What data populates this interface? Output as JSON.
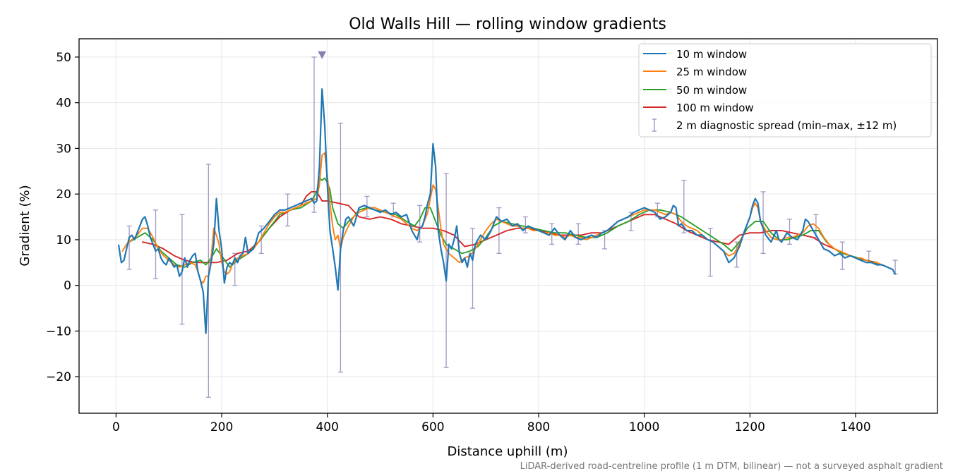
{
  "chart_data": {
    "type": "line",
    "title": "Old Walls Hill — rolling window gradients",
    "xlabel": "Distance uphill (m)",
    "ylabel": "Gradient (%)",
    "xlim": [
      -70,
      1555
    ],
    "ylim": [
      -28,
      54
    ],
    "xticks": [
      0,
      200,
      400,
      600,
      800,
      1000,
      1200,
      1400
    ],
    "xtick_labels": [
      "0",
      "200",
      "400",
      "600",
      "800",
      "1000",
      "1200",
      "1400"
    ],
    "yticks": [
      -20,
      -10,
      0,
      10,
      20,
      30,
      40,
      50
    ],
    "ytick_labels": [
      "−20",
      "−10",
      "0",
      "10",
      "20",
      "30",
      "40",
      "50"
    ],
    "grid": true,
    "legend_position": "top-right",
    "footnote": "LiDAR-derived road-centreline profile (1 m DTM, bilinear) — not a surveyed asphalt gradient",
    "series": [
      {
        "name": "10 m window",
        "color": "#1f77b4",
        "x": [
          5,
          10,
          15,
          20,
          25,
          30,
          35,
          40,
          45,
          50,
          55,
          60,
          65,
          70,
          75,
          80,
          85,
          90,
          95,
          100,
          105,
          110,
          115,
          120,
          125,
          130,
          135,
          140,
          145,
          150,
          155,
          160,
          165,
          170,
          175,
          180,
          185,
          190,
          195,
          200,
          205,
          210,
          215,
          220,
          225,
          230,
          235,
          240,
          245,
          250,
          255,
          260,
          265,
          270,
          275,
          280,
          290,
          300,
          310,
          320,
          330,
          340,
          350,
          360,
          370,
          375,
          380,
          385,
          390,
          395,
          400,
          405,
          410,
          415,
          420,
          425,
          430,
          435,
          440,
          445,
          450,
          455,
          460,
          470,
          480,
          490,
          500,
          510,
          520,
          530,
          540,
          550,
          560,
          570,
          575,
          580,
          585,
          590,
          595,
          600,
          605,
          610,
          615,
          620,
          625,
          630,
          635,
          640,
          645,
          650,
          655,
          660,
          665,
          670,
          675,
          680,
          690,
          700,
          710,
          720,
          730,
          740,
          750,
          760,
          770,
          780,
          790,
          800,
          810,
          820,
          830,
          840,
          850,
          860,
          870,
          880,
          890,
          900,
          910,
          920,
          930,
          940,
          950,
          960,
          970,
          980,
          990,
          1000,
          1010,
          1020,
          1030,
          1040,
          1050,
          1055,
          1060,
          1065,
          1070,
          1080,
          1090,
          1100,
          1110,
          1120,
          1130,
          1140,
          1150,
          1160,
          1170,
          1180,
          1190,
          1200,
          1205,
          1210,
          1215,
          1220,
          1230,
          1240,
          1250,
          1255,
          1260,
          1270,
          1280,
          1290,
          1300,
          1305,
          1310,
          1320,
          1330,
          1340,
          1350,
          1360,
          1370,
          1380,
          1390,
          1400,
          1410,
          1420,
          1430,
          1440,
          1450,
          1460,
          1470,
          1475
        ],
        "y": [
          8.8,
          5.0,
          5.5,
          8.0,
          10.5,
          11.0,
          10.0,
          11.5,
          13.0,
          14.5,
          15.0,
          13.0,
          10.5,
          9.0,
          7.5,
          8.0,
          6.0,
          5.0,
          4.5,
          6.0,
          5.0,
          4.0,
          4.5,
          2.0,
          3.0,
          6.0,
          4.0,
          5.5,
          6.5,
          7.0,
          3.0,
          1.0,
          -1.5,
          -10.5,
          2.0,
          5.0,
          9.0,
          19.0,
          12.0,
          8.0,
          0.5,
          4.0,
          5.0,
          4.5,
          6.0,
          5.0,
          6.5,
          7.0,
          10.5,
          7.0,
          7.5,
          8.0,
          9.5,
          11.5,
          12.0,
          12.5,
          14.0,
          15.5,
          16.5,
          16.5,
          17.0,
          17.5,
          18.0,
          18.5,
          19.0,
          18.0,
          18.5,
          26.0,
          43.0,
          35.0,
          22.0,
          12.0,
          8.0,
          4.0,
          -1.0,
          8.0,
          12.0,
          14.5,
          15.0,
          14.0,
          13.0,
          15.0,
          17.0,
          17.5,
          17.0,
          16.5,
          16.0,
          16.5,
          15.5,
          16.0,
          15.0,
          15.5,
          12.0,
          10.0,
          12.5,
          13.0,
          15.0,
          18.0,
          20.0,
          31.0,
          26.0,
          12.0,
          8.0,
          5.0,
          1.0,
          9.0,
          8.0,
          10.0,
          13.0,
          7.0,
          5.0,
          6.0,
          4.0,
          7.0,
          5.5,
          9.0,
          11.0,
          10.0,
          12.0,
          15.0,
          14.0,
          14.5,
          13.0,
          13.5,
          12.0,
          13.0,
          12.5,
          12.0,
          11.5,
          11.0,
          12.5,
          11.0,
          10.0,
          12.0,
          10.5,
          10.0,
          10.5,
          11.0,
          10.5,
          11.5,
          12.0,
          13.0,
          14.0,
          14.5,
          15.0,
          16.0,
          16.5,
          17.0,
          16.5,
          16.0,
          14.5,
          15.0,
          16.0,
          17.5,
          17.0,
          13.0,
          13.5,
          12.0,
          12.0,
          11.0,
          11.0,
          10.0,
          9.5,
          8.5,
          7.5,
          5.0,
          6.0,
          8.5,
          12.0,
          15.0,
          17.5,
          19.0,
          18.0,
          14.0,
          11.0,
          9.5,
          12.0,
          10.0,
          9.5,
          11.5,
          10.5,
          10.0,
          12.0,
          14.5,
          14.0,
          12.0,
          10.0,
          8.0,
          7.5,
          6.5,
          7.0,
          6.0,
          6.5,
          6.0,
          5.5,
          5.0,
          5.0,
          4.5,
          4.5,
          4.0,
          3.5,
          2.5
        ]
      },
      {
        "name": "25 m window",
        "color": "#ff7f0e",
        "x": [
          12,
          20,
          30,
          40,
          50,
          60,
          70,
          80,
          90,
          100,
          110,
          120,
          130,
          140,
          150,
          155,
          160,
          165,
          170,
          175,
          180,
          185,
          190,
          195,
          200,
          205,
          210,
          215,
          220,
          230,
          240,
          250,
          260,
          270,
          280,
          290,
          300,
          310,
          320,
          330,
          340,
          350,
          360,
          370,
          380,
          385,
          390,
          395,
          400,
          405,
          410,
          415,
          420,
          425,
          430,
          440,
          450,
          460,
          470,
          480,
          490,
          500,
          510,
          520,
          530,
          540,
          550,
          560,
          570,
          580,
          590,
          595,
          600,
          605,
          610,
          615,
          620,
          630,
          640,
          650,
          660,
          670,
          680,
          690,
          700,
          710,
          720,
          730,
          740,
          750,
          760,
          770,
          780,
          790,
          800,
          810,
          820,
          830,
          840,
          850,
          860,
          870,
          880,
          890,
          900,
          910,
          920,
          930,
          940,
          950,
          960,
          970,
          980,
          990,
          1000,
          1010,
          1020,
          1030,
          1040,
          1050,
          1060,
          1070,
          1080,
          1090,
          1100,
          1110,
          1120,
          1130,
          1140,
          1150,
          1160,
          1170,
          1180,
          1190,
          1200,
          1205,
          1210,
          1215,
          1220,
          1230,
          1240,
          1250,
          1260,
          1270,
          1280,
          1290,
          1300,
          1310,
          1320,
          1330,
          1340,
          1350,
          1360,
          1370,
          1380,
          1390,
          1400,
          1410,
          1420,
          1430,
          1440,
          1450,
          1460,
          1470
        ],
        "y": [
          7.5,
          9.0,
          10.0,
          11.0,
          12.5,
          12.5,
          10.5,
          8.0,
          6.5,
          5.5,
          4.5,
          4.0,
          4.5,
          5.0,
          4.5,
          3.0,
          1.0,
          0.5,
          2.0,
          2.0,
          6.0,
          12.5,
          11.0,
          9.0,
          5.0,
          3.0,
          2.5,
          3.0,
          4.5,
          6.0,
          6.5,
          7.0,
          8.0,
          9.5,
          11.5,
          13.5,
          15.0,
          16.0,
          16.0,
          16.5,
          17.0,
          17.5,
          18.0,
          18.5,
          19.0,
          22.0,
          28.5,
          29.0,
          24.0,
          18.0,
          13.0,
          10.0,
          11.0,
          8.0,
          10.5,
          13.0,
          15.0,
          16.0,
          16.5,
          17.0,
          17.0,
          16.5,
          16.0,
          15.5,
          15.0,
          14.5,
          13.5,
          12.5,
          12.0,
          13.0,
          16.0,
          19.0,
          22.0,
          21.0,
          17.0,
          12.5,
          9.0,
          7.0,
          6.0,
          5.0,
          6.0,
          6.5,
          8.0,
          10.0,
          12.0,
          13.5,
          14.5,
          14.0,
          13.5,
          13.0,
          13.0,
          12.5,
          12.5,
          12.0,
          12.0,
          11.5,
          11.5,
          11.0,
          11.0,
          10.5,
          11.0,
          10.5,
          10.5,
          10.0,
          10.5,
          11.0,
          11.5,
          12.0,
          13.0,
          14.0,
          14.5,
          15.0,
          15.5,
          16.0,
          16.5,
          16.5,
          16.5,
          16.0,
          15.5,
          16.0,
          15.5,
          14.0,
          13.0,
          12.5,
          12.0,
          11.0,
          10.0,
          9.5,
          8.5,
          7.5,
          6.5,
          7.0,
          9.0,
          12.0,
          15.0,
          17.0,
          18.0,
          17.0,
          14.0,
          12.0,
          10.5,
          10.0,
          10.0,
          10.5,
          10.5,
          11.0,
          11.5,
          13.0,
          13.5,
          12.5,
          10.5,
          9.0,
          8.0,
          7.5,
          7.0,
          6.5,
          6.0,
          6.0,
          5.5,
          5.0,
          5.0,
          4.5,
          4.0,
          3.5
        ]
      },
      {
        "name": "50 m window",
        "color": "#2ca02c",
        "x": [
          25,
          40,
          55,
          70,
          85,
          100,
          115,
          130,
          145,
          160,
          170,
          180,
          190,
          200,
          215,
          230,
          250,
          270,
          290,
          310,
          330,
          350,
          370,
          380,
          385,
          390,
          395,
          400,
          405,
          410,
          420,
          430,
          440,
          450,
          460,
          475,
          490,
          510,
          530,
          550,
          565,
          575,
          585,
          595,
          605,
          615,
          625,
          640,
          655,
          670,
          685,
          700,
          715,
          730,
          750,
          770,
          790,
          810,
          830,
          850,
          870,
          890,
          910,
          930,
          950,
          970,
          990,
          1010,
          1030,
          1050,
          1070,
          1090,
          1110,
          1130,
          1150,
          1165,
          1180,
          1195,
          1210,
          1225,
          1240,
          1255,
          1270,
          1285,
          1300,
          1315,
          1330,
          1345,
          1360,
          1375,
          1390,
          1405,
          1420,
          1435,
          1450,
          1460
        ],
        "y": [
          9.5,
          10.5,
          11.5,
          10.0,
          7.5,
          6.0,
          4.5,
          4.0,
          5.0,
          5.5,
          4.5,
          6.0,
          8.0,
          6.5,
          4.0,
          5.5,
          7.0,
          9.5,
          12.5,
          15.5,
          16.5,
          17.0,
          18.5,
          20.5,
          23.5,
          23.0,
          23.5,
          22.5,
          21.0,
          17.0,
          13.5,
          12.5,
          14.0,
          15.0,
          16.5,
          17.0,
          16.5,
          16.0,
          15.5,
          14.0,
          13.0,
          14.5,
          17.0,
          17.0,
          14.0,
          11.0,
          9.0,
          8.0,
          7.0,
          7.5,
          8.5,
          10.5,
          13.0,
          14.0,
          13.5,
          13.0,
          12.5,
          12.0,
          11.5,
          11.5,
          11.0,
          10.5,
          10.5,
          11.5,
          13.0,
          14.0,
          15.5,
          16.5,
          16.5,
          16.0,
          15.0,
          13.5,
          12.0,
          10.5,
          9.0,
          7.5,
          9.5,
          12.5,
          14.0,
          14.0,
          11.5,
          10.0,
          10.0,
          10.5,
          11.0,
          12.0,
          12.0,
          9.5,
          8.0,
          7.0,
          6.5,
          6.0,
          5.5,
          5.0,
          4.5,
          4.0
        ]
      },
      {
        "name": "100 m window",
        "color": "#d62728",
        "x": [
          50,
          70,
          90,
          110,
          130,
          150,
          170,
          190,
          210,
          230,
          250,
          270,
          290,
          310,
          330,
          350,
          360,
          370,
          380,
          390,
          400,
          420,
          440,
          460,
          480,
          500,
          520,
          540,
          560,
          580,
          600,
          620,
          640,
          660,
          680,
          700,
          720,
          740,
          760,
          780,
          800,
          820,
          840,
          860,
          880,
          900,
          920,
          940,
          960,
          980,
          1000,
          1020,
          1040,
          1060,
          1080,
          1100,
          1120,
          1140,
          1160,
          1180,
          1200,
          1220,
          1240,
          1260,
          1280,
          1300,
          1320,
          1340,
          1360,
          1380,
          1400,
          1420,
          1440
        ],
        "y": [
          9.5,
          9.0,
          8.0,
          6.5,
          5.5,
          5.0,
          5.0,
          5.0,
          5.5,
          7.0,
          7.5,
          9.5,
          12.5,
          15.0,
          16.5,
          17.5,
          19.5,
          20.5,
          20.5,
          18.5,
          18.5,
          18.0,
          17.5,
          15.0,
          14.5,
          15.0,
          14.5,
          13.5,
          13.0,
          12.5,
          12.5,
          12.0,
          11.0,
          8.5,
          9.0,
          10.0,
          11.0,
          12.0,
          12.5,
          12.5,
          12.0,
          11.5,
          11.0,
          11.0,
          11.0,
          11.5,
          11.5,
          12.5,
          13.5,
          14.5,
          15.5,
          15.5,
          14.5,
          13.5,
          12.0,
          11.0,
          10.0,
          9.5,
          9.0,
          11.0,
          11.5,
          11.5,
          12.0,
          12.0,
          11.5,
          11.0,
          10.5,
          9.0,
          8.0,
          7.0,
          6.0,
          5.5,
          5.0
        ]
      }
    ],
    "spread": {
      "name": "2 m diagnostic spread (min–max, ±12 m)",
      "color": "#9a8fbf",
      "x": [
        25,
        75,
        125,
        175,
        225,
        275,
        325,
        375,
        425,
        475,
        525,
        575,
        625,
        675,
        725,
        775,
        825,
        875,
        925,
        975,
        1025,
        1075,
        1125,
        1175,
        1225,
        1275,
        1325,
        1375,
        1425,
        1475
      ],
      "low": [
        3.5,
        1.5,
        -8.5,
        -24.5,
        0.0,
        7.0,
        13.0,
        16.0,
        -19.0,
        15.0,
        15.0,
        9.5,
        -18.0,
        -5.0,
        7.0,
        11.5,
        9.0,
        9.0,
        8.0,
        12.0,
        15.0,
        11.5,
        2.0,
        4.0,
        7.0,
        9.0,
        10.5,
        3.5,
        5.0,
        2.5
      ],
      "high": [
        13.0,
        16.5,
        15.5,
        26.5,
        7.0,
        13.0,
        20.0,
        50.0,
        35.5,
        19.5,
        18.0,
        17.5,
        24.5,
        12.5,
        17.0,
        15.0,
        13.5,
        13.5,
        12.0,
        16.0,
        18.0,
        23.0,
        12.5,
        9.5,
        20.5,
        14.5,
        15.5,
        9.5,
        7.5,
        5.5
      ]
    },
    "marker": {
      "x": 390,
      "y": 50.5,
      "color": "#8c7fb0"
    }
  }
}
